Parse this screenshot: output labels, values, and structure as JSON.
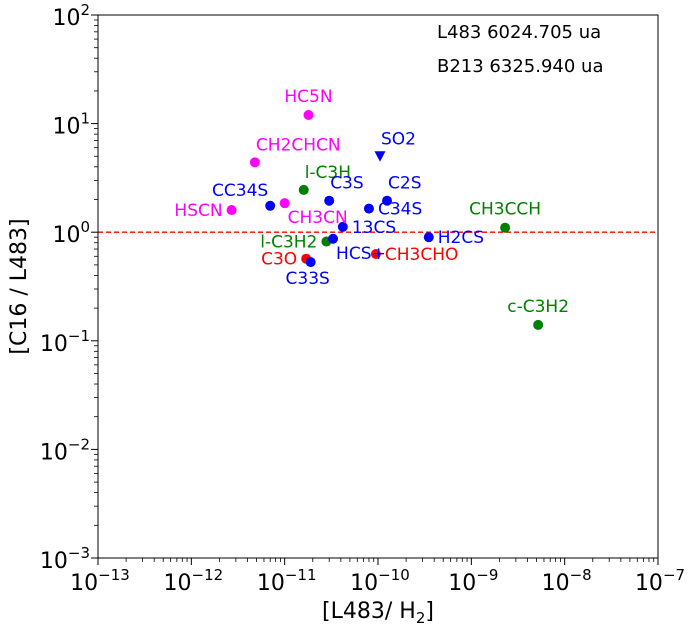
{
  "chart_data": {
    "type": "scatter",
    "xscale": "log",
    "yscale": "log",
    "xlim": [
      1e-13,
      1e-07
    ],
    "ylim": [
      0.001,
      100
    ],
    "xlabel": "[L483/ H",
    "xlabel_sub": "2",
    "xlabel_end": "]",
    "ylabel": "[C16 / L483]",
    "x_tick_labels": [
      {
        "value": 1e-13,
        "base": "10",
        "exp": "−13"
      },
      {
        "value": 1e-12,
        "base": "10",
        "exp": "−12"
      },
      {
        "value": 1e-11,
        "base": "10",
        "exp": "−11"
      },
      {
        "value": 1e-10,
        "base": "10",
        "exp": "−10"
      },
      {
        "value": 1e-09,
        "base": "10",
        "exp": "−9"
      },
      {
        "value": 1e-08,
        "base": "10",
        "exp": "−8"
      },
      {
        "value": 1e-07,
        "base": "10",
        "exp": "−7"
      }
    ],
    "y_tick_labels": [
      {
        "value": 0.001,
        "base": "10",
        "exp": "−3"
      },
      {
        "value": 0.01,
        "base": "10",
        "exp": "−2"
      },
      {
        "value": 0.1,
        "base": "10",
        "exp": "−1"
      },
      {
        "value": 1,
        "base": "10",
        "exp": "0"
      },
      {
        "value": 10,
        "base": "10",
        "exp": "1"
      },
      {
        "value": 100,
        "base": "10",
        "exp": "2"
      }
    ],
    "reference_line": {
      "y": 1.0,
      "style": "dashed",
      "color": "#ff0000"
    },
    "annotations": [
      "L483 6024.705 ua",
      "B213 6325.940 ua"
    ],
    "colors": {
      "magenta": "#ff00ff",
      "green": "#008000",
      "blue": "#0000ff",
      "red": "#ff0000"
    },
    "points": [
      {
        "label": "HC5N",
        "x": 1.8e-11,
        "y": 12.0,
        "color": "magenta",
        "marker": "circle",
        "label_pos": "above"
      },
      {
        "label": "CH2CHCN",
        "x": 4.8e-12,
        "y": 4.4,
        "color": "magenta",
        "marker": "circle",
        "label_pos": "above-right"
      },
      {
        "label": "HSCN",
        "x": 2.7e-12,
        "y": 1.6,
        "color": "magenta",
        "marker": "circle",
        "label_pos": "left"
      },
      {
        "label": "CH3CN",
        "x": 1e-11,
        "y": 1.85,
        "color": "magenta",
        "marker": "circle",
        "label_pos": "below-right"
      },
      {
        "label": "CC34S",
        "x": 7e-12,
        "y": 1.75,
        "color": "blue",
        "marker": "circle",
        "label_pos": "above-left"
      },
      {
        "label": "l-C3H",
        "x": 1.6e-11,
        "y": 2.45,
        "color": "green",
        "marker": "circle",
        "label_pos": "above-right"
      },
      {
        "label": "C3S",
        "x": 3e-11,
        "y": 1.95,
        "color": "blue",
        "marker": "circle",
        "label_pos": "above-right"
      },
      {
        "label": "SO2",
        "x": 1.05e-10,
        "y": 5.0,
        "color": "blue",
        "marker": "triangle-down",
        "label_pos": "above-right"
      },
      {
        "label": "C2S",
        "x": 1.25e-10,
        "y": 1.95,
        "color": "blue",
        "marker": "circle",
        "label_pos": "above-right"
      },
      {
        "label": "C34S",
        "x": 8e-11,
        "y": 1.65,
        "color": "blue",
        "marker": "circle",
        "label_pos": "right"
      },
      {
        "label": "13CS",
        "x": 4.2e-11,
        "y": 1.12,
        "color": "blue",
        "marker": "circle",
        "label_pos": "right"
      },
      {
        "label": "l-C3H2",
        "x": 2.8e-11,
        "y": 0.82,
        "color": "green",
        "marker": "circle",
        "label_pos": "left"
      },
      {
        "label": "HCS+",
        "x": 3.3e-11,
        "y": 0.87,
        "color": "blue",
        "marker": "circle",
        "label_pos": "below-right"
      },
      {
        "label": "H2CS",
        "x": 3.5e-10,
        "y": 0.9,
        "color": "blue",
        "marker": "circle",
        "label_pos": "right"
      },
      {
        "label": "CH3CCH",
        "x": 2.3e-09,
        "y": 1.1,
        "color": "green",
        "marker": "circle",
        "label_pos": "above"
      },
      {
        "label": "C3O",
        "x": 1.7e-11,
        "y": 0.57,
        "color": "red",
        "marker": "circle",
        "label_pos": "left"
      },
      {
        "label": "C33S",
        "x": 1.9e-11,
        "y": 0.53,
        "color": "blue",
        "marker": "circle",
        "label_pos": "below"
      },
      {
        "label": "CH3CHO",
        "x": 9.5e-11,
        "y": 0.63,
        "color": "red",
        "marker": "circle",
        "label_pos": "right"
      },
      {
        "label": "c-C3H2",
        "x": 5.2e-09,
        "y": 0.14,
        "color": "green",
        "marker": "circle",
        "label_pos": "above"
      }
    ]
  }
}
